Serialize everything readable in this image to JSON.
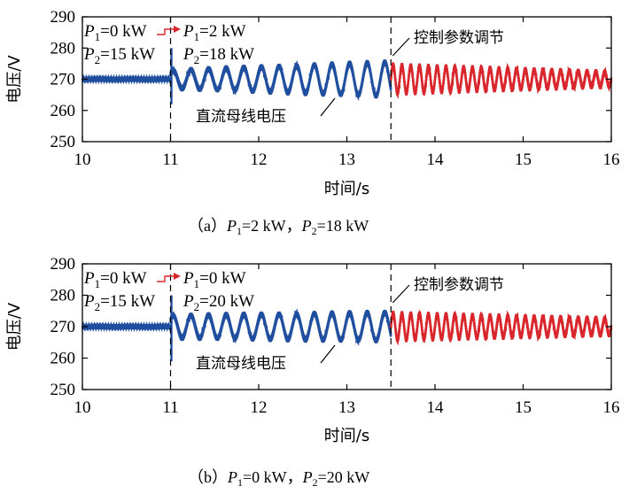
{
  "colors": {
    "before": "#1f4e9e",
    "after": "#d8262c",
    "arrow": "#d8262c",
    "frame": "#000000"
  },
  "chart_data": [
    {
      "type": "line",
      "caption": {
        "prefix": "（a）",
        "p1": "P1=2 kW",
        "sep": "，",
        "p2": "P2=18 kW"
      },
      "xlabel": "时间/s",
      "ylabel": "电压/V",
      "xlim": [
        10,
        16
      ],
      "ylim": [
        250,
        290
      ],
      "xticks": [
        "10",
        "11",
        "12",
        "13",
        "14",
        "15",
        "16"
      ],
      "yticks": [
        "250",
        "260",
        "270",
        "280",
        "290"
      ],
      "events": [
        {
          "x": 11.0,
          "label": "P1=0 kW → P1=2 kW; P2=15 kW → P2=18 kW"
        },
        {
          "x": 13.5,
          "label": "控制参数调节"
        }
      ],
      "annotations": {
        "before_p1": "P1=0 kW",
        "before_p2": "P2=15 kW",
        "after_p1": "P1=2 kW",
        "after_p2": "P2=18 kW",
        "control": "控制参数调节",
        "trace": "直流母线电压"
      },
      "series": [
        {
          "segment": "before",
          "x": [
            10,
            11.0
          ],
          "mean": 270,
          "amplitude": 0.6
        },
        {
          "segment": "transition",
          "x": [
            11.0,
            13.5
          ],
          "mean": 270,
          "spike_min": 262,
          "spike_max": 280,
          "oscillation_amplitude_start": 2.8,
          "oscillation_amplitude_end": 5.5,
          "period_s": 0.2
        },
        {
          "segment": "after",
          "x": [
            13.5,
            16
          ],
          "mean": 270,
          "oscillation_amplitude_start": 4.5,
          "oscillation_amplitude_end": 2.2,
          "period_s": 0.1
        }
      ]
    },
    {
      "type": "line",
      "caption": {
        "prefix": "（b）",
        "p1": "P1=0 kW",
        "sep": "，",
        "p2": "P2=20 kW"
      },
      "xlabel": "时间/s",
      "ylabel": "电压/V",
      "xlim": [
        10,
        16
      ],
      "ylim": [
        250,
        290
      ],
      "xticks": [
        "10",
        "11",
        "12",
        "13",
        "14",
        "15",
        "16"
      ],
      "yticks": [
        "250",
        "260",
        "270",
        "280",
        "290"
      ],
      "events": [
        {
          "x": 11.0,
          "label": "P1=0 kW → P1=0 kW; P2=15 kW → P2=20 kW"
        },
        {
          "x": 13.5,
          "label": "控制参数调节"
        }
      ],
      "annotations": {
        "before_p1": "P1=0 kW",
        "before_p2": "P2=15 kW",
        "after_p1": "P1=0 kW",
        "after_p2": "P2=20 kW",
        "control": "控制参数调节",
        "trace": "直流母线电压"
      },
      "series": [
        {
          "segment": "before",
          "x": [
            10,
            11.0
          ],
          "mean": 270,
          "amplitude": 0.6
        },
        {
          "segment": "transition",
          "x": [
            11.0,
            13.5
          ],
          "mean": 270,
          "spike_min": 259,
          "spike_max": 280,
          "oscillation_amplitude_start": 3.5,
          "oscillation_amplitude_end": 4.5,
          "period_s": 0.2
        },
        {
          "segment": "after",
          "x": [
            13.5,
            16
          ],
          "mean": 270,
          "oscillation_amplitude_start": 4.2,
          "oscillation_amplitude_end": 2.5,
          "period_s": 0.1
        }
      ]
    }
  ]
}
